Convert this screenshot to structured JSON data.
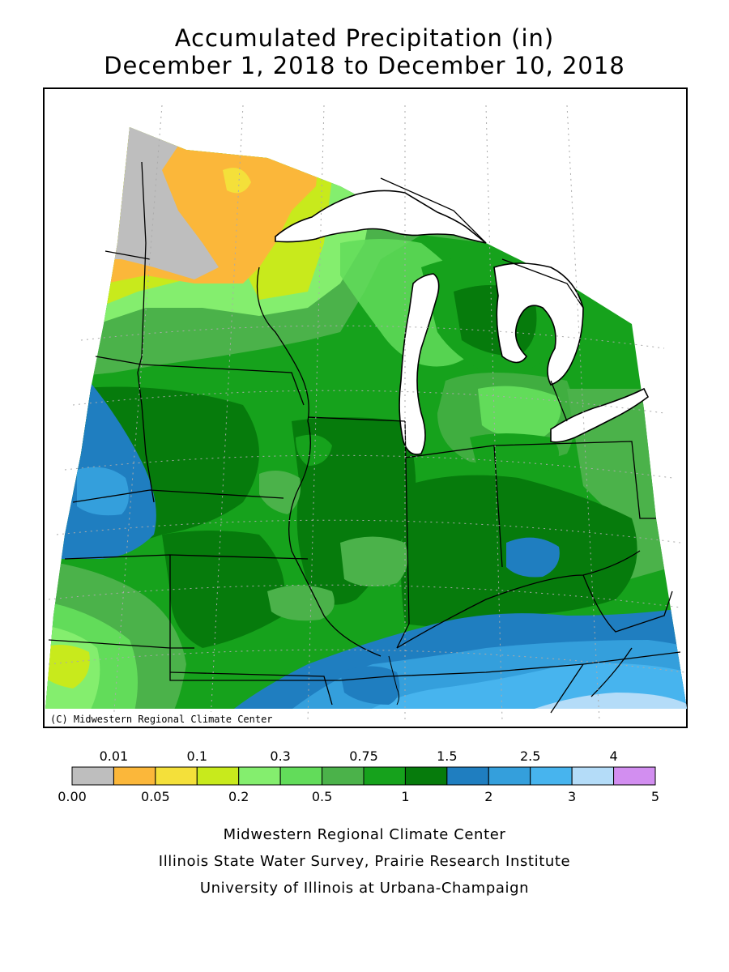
{
  "title": {
    "line1": "Accumulated Precipitation (in)",
    "line2": "December 1, 2018 to December 10, 2018"
  },
  "map": {
    "region": "Midwest United States",
    "copyright": "(C) Midwestern Regional Climate Center"
  },
  "legend": {
    "units": "in",
    "top_labels": [
      "0.01",
      "0.1",
      "0.3",
      "0.75",
      "1.5",
      "2.5",
      "4"
    ],
    "bottom_labels": [
      "0.00",
      "0.05",
      "0.2",
      "0.5",
      "1",
      "2",
      "3",
      "5"
    ],
    "bins": [
      {
        "range": "0.00-0.01",
        "color": "#bebebe"
      },
      {
        "range": "0.01-0.05",
        "color": "#fbb73a"
      },
      {
        "range": "0.05-0.1",
        "color": "#f4e03a"
      },
      {
        "range": "0.1-0.2",
        "color": "#c8ea1c"
      },
      {
        "range": "0.2-0.3",
        "color": "#84ee6e"
      },
      {
        "range": "0.3-0.5",
        "color": "#62dc5a"
      },
      {
        "range": "0.5-0.75",
        "color": "#4bb24a"
      },
      {
        "range": "0.75-1",
        "color": "#16a21c"
      },
      {
        "range": "1-1.5",
        "color": "#067b0c"
      },
      {
        "range": "1.5-2",
        "color": "#1f7ec0"
      },
      {
        "range": "2-2.5",
        "color": "#349fdc"
      },
      {
        "range": "2.5-3",
        "color": "#47b4ee"
      },
      {
        "range": "3-4",
        "color": "#b4dcf8"
      },
      {
        "range": "4-5",
        "color": "#d28ef0"
      }
    ]
  },
  "credits": {
    "line1": "Midwestern Regional Climate Center",
    "line2": "Illinois State Water Survey, Prairie Research Institute",
    "line3": "University of Illinois at Urbana-Champaign"
  }
}
